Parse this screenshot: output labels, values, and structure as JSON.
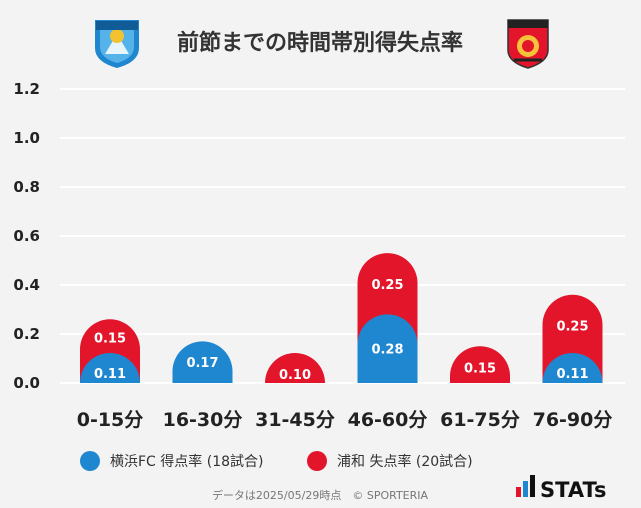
{
  "header": {
    "title": "前節までの時間帯別得失点率",
    "left_logo": {
      "name": "yokohama-fc-emblem",
      "text": "YOKOHAMA",
      "badge": "FC",
      "color": "#1f86d0"
    },
    "right_logo": {
      "name": "urawa-reds-emblem",
      "color": "#e2152b"
    }
  },
  "legend": [
    {
      "label": "横浜FC 得点率 (18試合)",
      "color": "#1f86d0"
    },
    {
      "label": "浦和 失点率 (20試合)",
      "color": "#e2152b"
    }
  ],
  "footer": {
    "note": "データは2025/05/29時点　© SPORTERIA"
  },
  "brand": {
    "text": "STATs"
  },
  "chart_data": {
    "type": "bar",
    "stacked": true,
    "categories": [
      "0-15分",
      "16-30分",
      "31-45分",
      "46-60分",
      "61-75分",
      "76-90分"
    ],
    "series": [
      {
        "name": "横浜FC 得点率 (18試合)",
        "color": "#1f86d0",
        "values": [
          0.11,
          0.17,
          0.0,
          0.28,
          0.0,
          0.11
        ]
      },
      {
        "name": "浦和 失点率 (20試合)",
        "color": "#e2152b",
        "values": [
          0.15,
          0.0,
          0.1,
          0.25,
          0.15,
          0.25
        ]
      }
    ],
    "ylim": [
      0,
      1.2
    ],
    "yticks": [
      "0.0",
      "0.2",
      "0.4",
      "0.6",
      "0.8",
      "1.0",
      "1.2"
    ],
    "grid": true,
    "legend_position": "bottom"
  }
}
